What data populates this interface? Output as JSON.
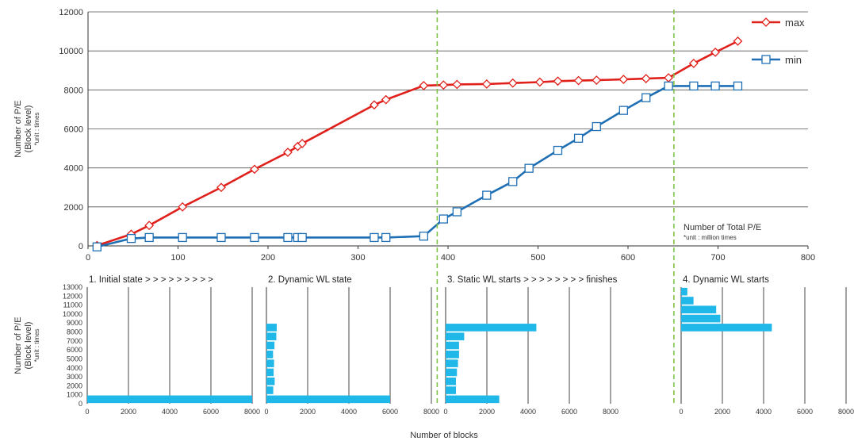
{
  "colors": {
    "max": "#e0201b",
    "min": "#1f6fb5",
    "bar": "#1fb8e8",
    "divider": "#7ec24a",
    "grid": "#555555"
  },
  "chart_data": [
    {
      "type": "line",
      "ylabel_lines": [
        "Number of P/E",
        "(Block level)",
        "*unit : times"
      ],
      "xlabel_lines": [
        "Number of Total P/E",
        "*unit : million times"
      ],
      "xlim": [
        0,
        800
      ],
      "ylim": [
        0,
        12000
      ],
      "xticks": [
        0,
        100,
        200,
        300,
        400,
        500,
        600,
        700,
        800
      ],
      "yticks": [
        0,
        2000,
        4000,
        6000,
        8000,
        10000,
        12000
      ],
      "grid": "horizontal",
      "legend_position": "top-right",
      "dividers_x": [
        388,
        651
      ],
      "series": [
        {
          "name": "max",
          "marker": "diamond",
          "x": [
            10,
            48,
            68,
            105,
            148,
            185,
            222,
            233,
            238,
            318,
            331,
            373,
            395,
            410,
            443,
            472,
            502,
            522,
            545,
            565,
            595,
            620,
            645,
            673,
            697,
            722
          ],
          "y": [
            20,
            600,
            1050,
            2000,
            3000,
            3930,
            4800,
            5100,
            5250,
            7230,
            7500,
            8220,
            8250,
            8280,
            8300,
            8350,
            8400,
            8450,
            8480,
            8500,
            8540,
            8580,
            8620,
            9360,
            9930,
            10500
          ]
        },
        {
          "name": "min",
          "marker": "square",
          "x": [
            10,
            48,
            68,
            105,
            148,
            185,
            222,
            233,
            238,
            318,
            331,
            373,
            395,
            410,
            443,
            472,
            490,
            522,
            545,
            565,
            595,
            620,
            645,
            673,
            697,
            722
          ],
          "y": [
            -50,
            380,
            430,
            430,
            430,
            430,
            430,
            430,
            430,
            430,
            430,
            500,
            1380,
            1750,
            2600,
            3300,
            3980,
            4900,
            5520,
            6120,
            6950,
            7600,
            8200,
            8200,
            8200,
            8200
          ]
        }
      ]
    },
    {
      "type": "bar",
      "orientation": "horizontal",
      "ylabel_lines": [
        "Number of P/E",
        "(Block level)",
        "*unit : times"
      ],
      "xlabel": "Number of blocks",
      "ylim": [
        0,
        13000
      ],
      "yticks": [
        0,
        1000,
        2000,
        3000,
        4000,
        5000,
        6000,
        7000,
        8000,
        9000,
        10000,
        11000,
        12000,
        13000
      ],
      "grid": "vertical",
      "panels": [
        {
          "title": "1. Initial state  >  >  >  >  >  >  >  >  >",
          "xlim": [
            0,
            8000
          ],
          "xticks": [
            0,
            2000,
            4000,
            6000,
            8000
          ],
          "bars": [
            {
              "y": 500,
              "value": 8000
            }
          ]
        },
        {
          "title": "2. Dynamic WL state",
          "xlim": [
            0,
            8000
          ],
          "xticks": [
            0,
            2000,
            4000,
            6000,
            8000
          ],
          "bars": [
            {
              "y": 500,
              "value": 6000
            },
            {
              "y": 1500,
              "value": 330
            },
            {
              "y": 2500,
              "value": 400
            },
            {
              "y": 3500,
              "value": 350
            },
            {
              "y": 4500,
              "value": 370
            },
            {
              "y": 5500,
              "value": 320
            },
            {
              "y": 6500,
              "value": 390
            },
            {
              "y": 7500,
              "value": 480
            },
            {
              "y": 8500,
              "value": 500
            }
          ]
        },
        {
          "title": "3. Static WL starts  >  >  >  >  >  >  >  >  finishes",
          "xlim": [
            0,
            8000
          ],
          "xticks": [
            0,
            2000,
            4000,
            6000,
            8000
          ],
          "bars": [
            {
              "y": 500,
              "value": 2600
            },
            {
              "y": 1500,
              "value": 500
            },
            {
              "y": 2500,
              "value": 500
            },
            {
              "y": 3500,
              "value": 550
            },
            {
              "y": 4500,
              "value": 600
            },
            {
              "y": 5500,
              "value": 650
            },
            {
              "y": 6500,
              "value": 650
            },
            {
              "y": 7500,
              "value": 900
            },
            {
              "y": 8500,
              "value": 4400
            }
          ]
        },
        {
          "title": "4. Dynamic WL starts",
          "xlim": [
            0,
            8000
          ],
          "xticks": [
            0,
            2000,
            4000,
            6000,
            8000
          ],
          "bars": [
            {
              "y": 8500,
              "value": 4400
            },
            {
              "y": 9500,
              "value": 1900
            },
            {
              "y": 10500,
              "value": 1700
            },
            {
              "y": 11500,
              "value": 600
            },
            {
              "y": 12500,
              "value": 300
            }
          ]
        }
      ]
    }
  ]
}
